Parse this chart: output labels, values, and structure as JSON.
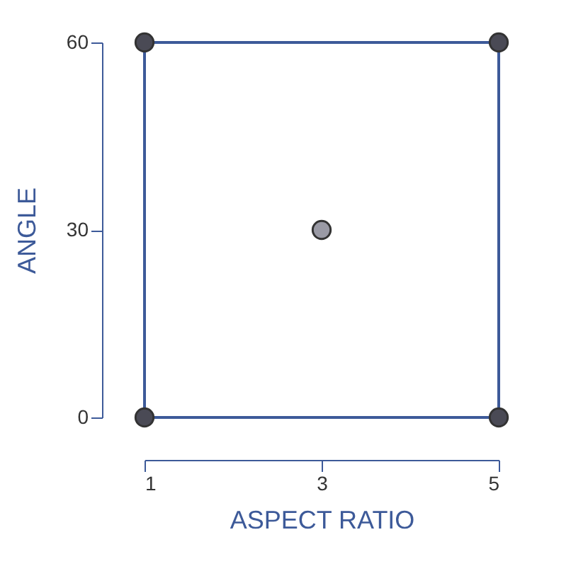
{
  "chart_data": {
    "type": "scatter",
    "xlabel": "ASPECT RATIO",
    "ylabel": "ANGLE",
    "x": [
      1,
      1,
      5,
      5,
      3
    ],
    "values": [
      0,
      60,
      0,
      60,
      30
    ],
    "colors": [
      "#4a4a55",
      "#4a4a55",
      "#4a4a55",
      "#4a4a55",
      "#9a9aa5"
    ],
    "xlim": [
      1,
      5
    ],
    "ylim": [
      0,
      60
    ],
    "xticks": [
      1,
      3,
      5
    ],
    "yticks": [
      0,
      30,
      60
    ],
    "grid": false,
    "marker": "circle"
  }
}
